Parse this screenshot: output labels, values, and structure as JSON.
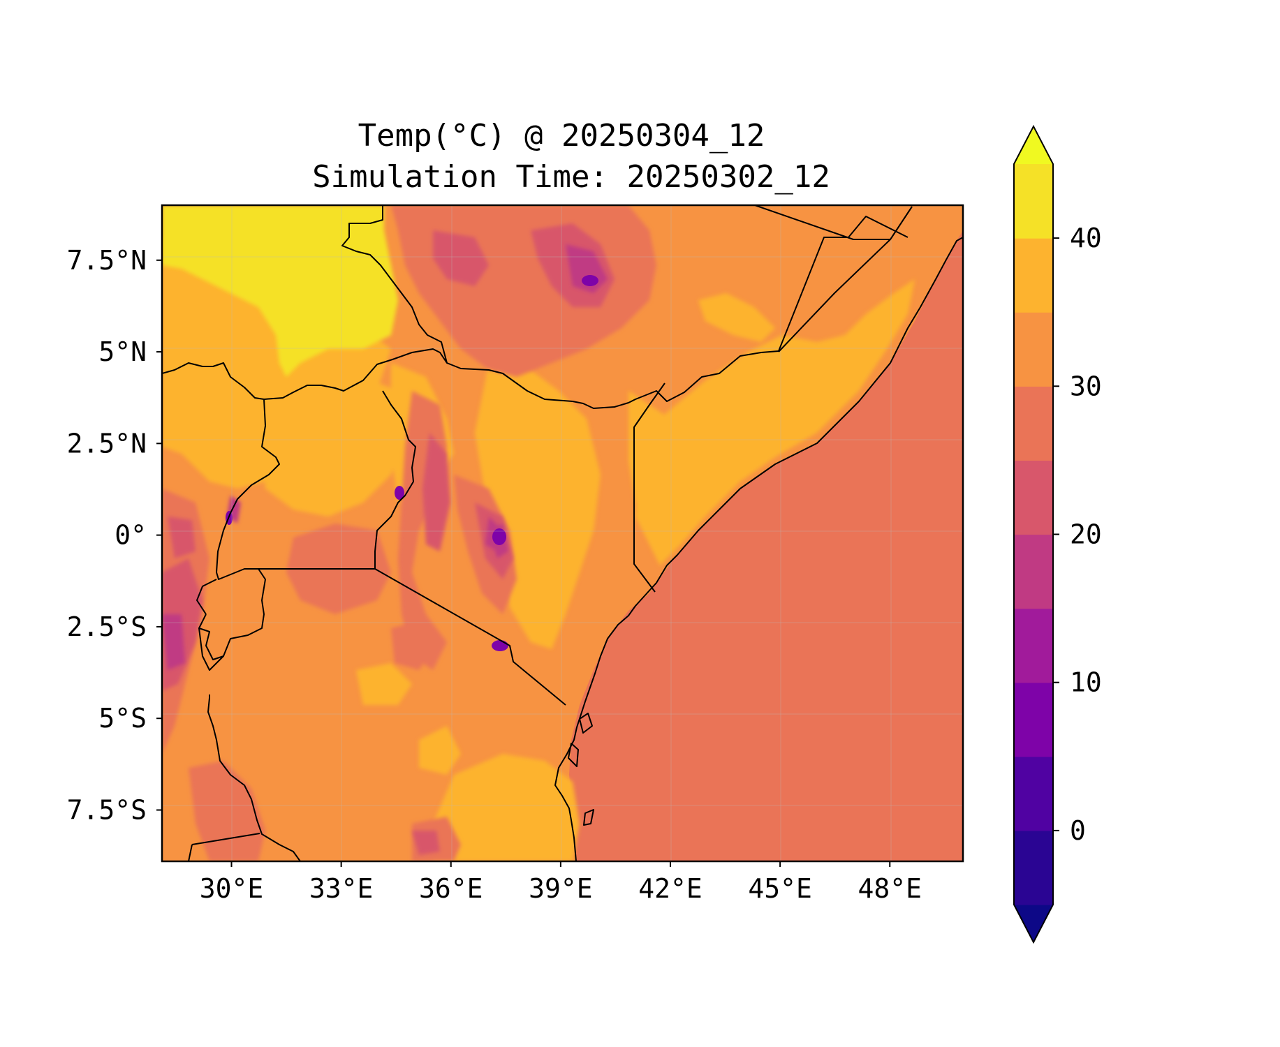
{
  "title": {
    "line1": "Temp(°C) @ 20250304_12",
    "line2": "Simulation Time: 20250302_12"
  },
  "chart_data": {
    "type": "heatmap",
    "variable": "Temp(°C)",
    "x_ticks": [
      {
        "value": 30,
        "label": "30°E"
      },
      {
        "value": 33,
        "label": "33°E"
      },
      {
        "value": 36,
        "label": "36°E"
      },
      {
        "value": 39,
        "label": "39°E"
      },
      {
        "value": 42,
        "label": "42°E"
      },
      {
        "value": 45,
        "label": "45°E"
      },
      {
        "value": 48,
        "label": "48°E"
      }
    ],
    "y_ticks": [
      {
        "value": 7.5,
        "label": "7.5°N"
      },
      {
        "value": 5,
        "label": "5°N"
      },
      {
        "value": 2.5,
        "label": "2.5°N"
      },
      {
        "value": 0,
        "label": "0°"
      },
      {
        "value": -2.5,
        "label": "2.5°S"
      },
      {
        "value": -5,
        "label": "5°S"
      },
      {
        "value": -7.5,
        "label": "7.5°S"
      }
    ],
    "xlim": [
      28.1,
      50.0
    ],
    "ylim": [
      -8.9,
      9.0
    ],
    "colorbar": {
      "extend": "both",
      "levels": [
        -5,
        0,
        5,
        10,
        15,
        20,
        25,
        30,
        35,
        40,
        45
      ],
      "colors": [
        "#0d0887",
        "#2a0593",
        "#5002a2",
        "#7e03a8",
        "#a11b9b",
        "#c03a83",
        "#d8576b",
        "#ea7457",
        "#f79342",
        "#fdb32f",
        "#f5e127",
        "#f0f921"
      ],
      "ticks": [
        {
          "value": 0,
          "label": "0"
        },
        {
          "value": 10,
          "label": "10"
        },
        {
          "value": 20,
          "label": "20"
        },
        {
          "value": 30,
          "label": "30"
        },
        {
          "value": 40,
          "label": "40"
        }
      ]
    },
    "grid": true
  }
}
